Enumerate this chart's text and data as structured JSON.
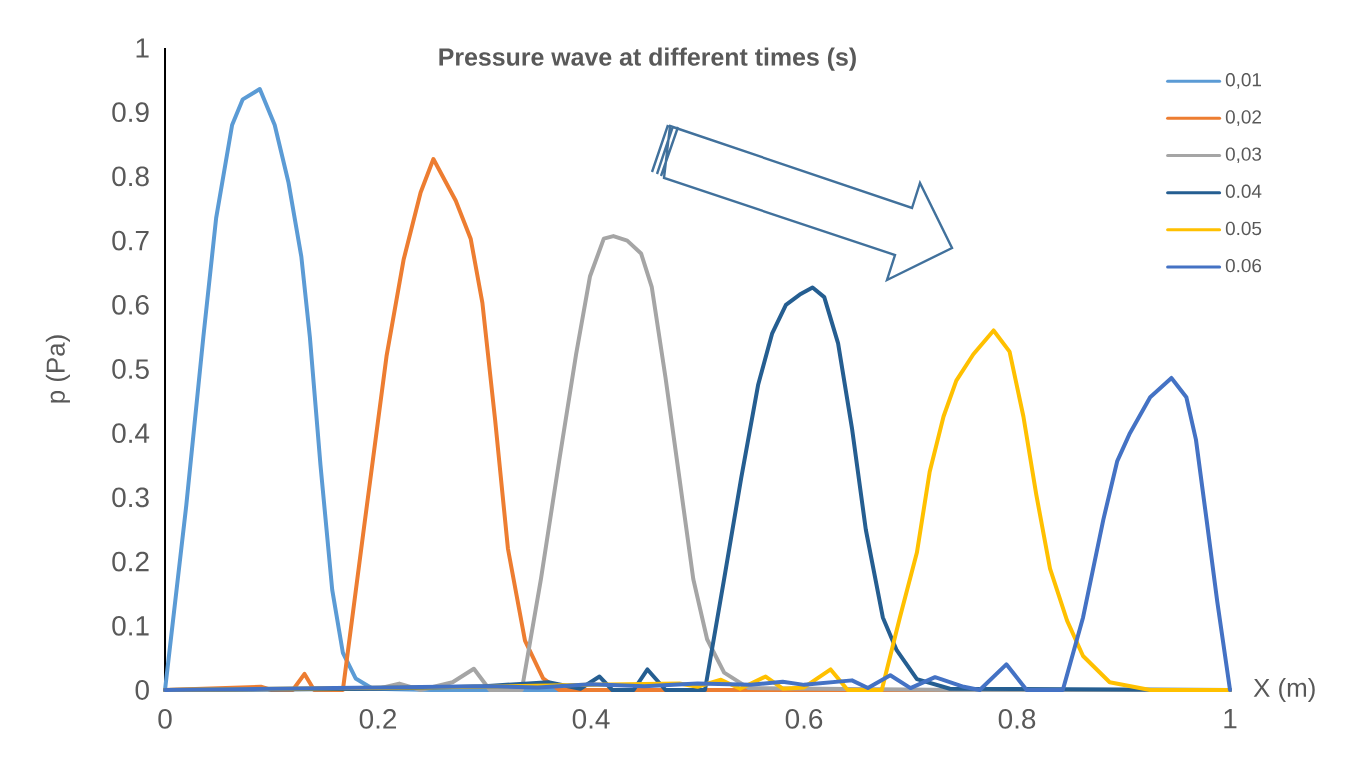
{
  "chart_data": {
    "type": "line",
    "title": "Pressure wave at different times (s)",
    "xlabel": "X (m)",
    "ylabel": "p (Pa)",
    "xlim": [
      0,
      1
    ],
    "xticks": [
      0,
      0.2,
      0.4,
      0.6,
      0.8,
      1
    ],
    "ylim": [
      0,
      1
    ],
    "yticks": [
      0,
      0.1,
      0.2,
      0.3,
      0.4,
      0.5,
      0.6,
      0.7,
      0.8,
      0.9,
      1
    ],
    "grid": false,
    "legend": "top right",
    "marker": "none",
    "line_style": "solid",
    "series": [
      {
        "name": "0,01",
        "color": "#5b9bd5",
        "x": [
          0,
          0.02,
          0.036,
          0.048,
          0.063,
          0.073,
          0.089,
          0.103,
          0.116,
          0.128,
          0.136,
          0.146,
          0.157,
          0.167,
          0.179,
          0.195,
          0.25,
          0.5,
          0.75,
          1
        ],
        "values": [
          0,
          0.288,
          0.55,
          0.735,
          0.88,
          0.92,
          0.936,
          0.88,
          0.79,
          0.675,
          0.55,
          0.35,
          0.156,
          0.058,
          0.018,
          0.002,
          0,
          0,
          0,
          0
        ]
      },
      {
        "name": "0,02",
        "color": "#ed7d31",
        "x": [
          0,
          0.09,
          0.1,
          0.12,
          0.131,
          0.14,
          0.167,
          0.187,
          0.208,
          0.224,
          0.24,
          0.252,
          0.273,
          0.287,
          0.298,
          0.31,
          0.322,
          0.338,
          0.355,
          0.37,
          0.5,
          0.75,
          1
        ],
        "values": [
          0,
          0.005,
          0,
          0,
          0.025,
          0,
          0,
          0.255,
          0.52,
          0.67,
          0.775,
          0.827,
          0.762,
          0.703,
          0.603,
          0.42,
          0.22,
          0.077,
          0.018,
          0,
          0,
          0,
          0
        ]
      },
      {
        "name": "0,03",
        "color": "#a5a5a5",
        "x": [
          0,
          0.2,
          0.22,
          0.24,
          0.27,
          0.29,
          0.305,
          0.335,
          0.353,
          0.37,
          0.386,
          0.399,
          0.412,
          0.421,
          0.434,
          0.447,
          0.457,
          0.47,
          0.483,
          0.496,
          0.509,
          0.525,
          0.548,
          0.75,
          1
        ],
        "values": [
          0,
          0.002,
          0.01,
          0,
          0.012,
          0.033,
          0,
          0,
          0.173,
          0.356,
          0.523,
          0.644,
          0.703,
          0.707,
          0.7,
          0.68,
          0.628,
          0.486,
          0.33,
          0.173,
          0.079,
          0.027,
          0.003,
          0,
          0
        ]
      },
      {
        "name": "0.04",
        "color": "#255e91",
        "x": [
          0,
          0.2,
          0.3,
          0.36,
          0.39,
          0.408,
          0.42,
          0.44,
          0.453,
          0.47,
          0.507,
          0.525,
          0.541,
          0.557,
          0.57,
          0.583,
          0.596,
          0.608,
          0.619,
          0.632,
          0.645,
          0.658,
          0.674,
          0.687,
          0.706,
          0.737,
          1
        ],
        "values": [
          0,
          0.002,
          0.006,
          0.012,
          0.002,
          0.021,
          0,
          0,
          0.032,
          0,
          0,
          0.173,
          0.33,
          0.476,
          0.555,
          0.6,
          0.616,
          0.627,
          0.612,
          0.54,
          0.408,
          0.25,
          0.113,
          0.062,
          0.017,
          0.002,
          0
        ]
      },
      {
        "name": "0.05",
        "color": "#ffc000",
        "x": [
          0,
          0.3,
          0.4,
          0.483,
          0.5,
          0.522,
          0.54,
          0.564,
          0.58,
          0.6,
          0.625,
          0.641,
          0.673,
          0.69,
          0.706,
          0.718,
          0.731,
          0.743,
          0.759,
          0.778,
          0.793,
          0.806,
          0.818,
          0.831,
          0.847,
          0.862,
          0.887,
          0.925,
          1
        ],
        "values": [
          0,
          0.005,
          0.008,
          0.01,
          0.005,
          0.016,
          0.002,
          0.021,
          0.002,
          0.004,
          0.032,
          0,
          0,
          0.113,
          0.214,
          0.34,
          0.426,
          0.482,
          0.523,
          0.56,
          0.527,
          0.426,
          0.305,
          0.189,
          0.108,
          0.053,
          0.012,
          0,
          0
        ]
      },
      {
        "name": "0.06",
        "color": "#4472c4",
        "x": [
          0,
          0.1,
          0.2,
          0.3,
          0.35,
          0.4,
          0.45,
          0.5,
          0.55,
          0.58,
          0.6,
          0.645,
          0.66,
          0.681,
          0.7,
          0.723,
          0.75,
          0.765,
          0.79,
          0.809,
          0.843,
          0.862,
          0.881,
          0.894,
          0.906,
          0.925,
          0.945,
          0.959,
          0.968,
          0.978,
          0.988,
          1
        ],
        "values": [
          0,
          0.002,
          0.004,
          0.006,
          0.004,
          0.009,
          0.006,
          0.01,
          0.008,
          0.013,
          0.008,
          0.015,
          0.003,
          0.023,
          0.003,
          0.02,
          0.005,
          0,
          0.04,
          0,
          0,
          0.113,
          0.265,
          0.356,
          0.4,
          0.456,
          0.486,
          0.456,
          0.39,
          0.265,
          0.138,
          0
        ]
      }
    ]
  }
}
